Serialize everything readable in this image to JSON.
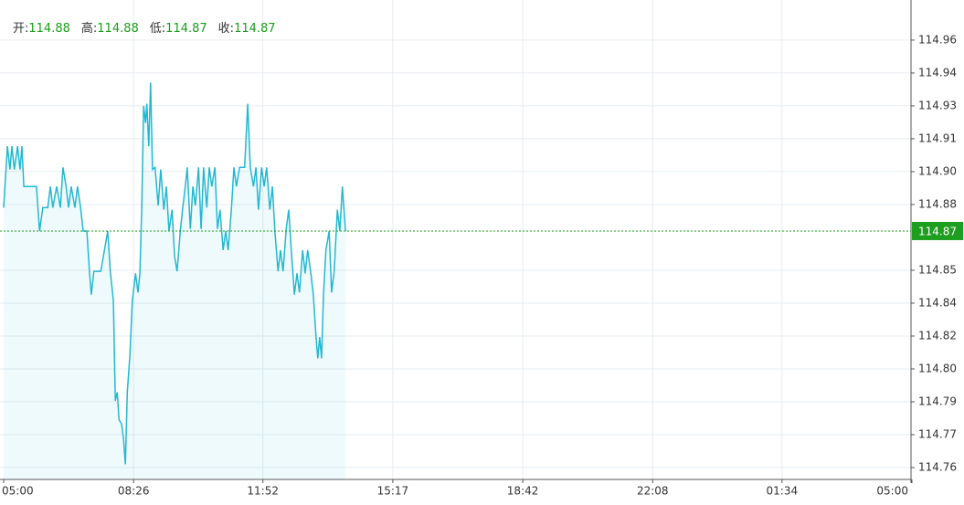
{
  "chart_data": {
    "type": "line",
    "ohlc": [
      {
        "label": "开:",
        "value": 114.88
      },
      {
        "label": "高:",
        "value": 114.88
      },
      {
        "label": "低:",
        "value": 114.87
      },
      {
        "label": "收:",
        "value": 114.87
      }
    ],
    "current_price": 114.87,
    "current_color": "#1e9e1e",
    "x": [
      0,
      6,
      10,
      13,
      17,
      22,
      26,
      29,
      32,
      38,
      45,
      52,
      57,
      62,
      70,
      74,
      78,
      84,
      90,
      94,
      99,
      103,
      107,
      113,
      117,
      122,
      126,
      132,
      136,
      139,
      143,
      154,
      161,
      165,
      169,
      174,
      177,
      180,
      183,
      187,
      190,
      193,
      196,
      200,
      204,
      209,
      213,
      216,
      219,
      222,
      225,
      227,
      230,
      233,
      236,
      240,
      245,
      249,
      254,
      258,
      262,
      267,
      271,
      275,
      280,
      284,
      288,
      291,
      296,
      300,
      304,
      309,
      313,
      317,
      322,
      326,
      330,
      335,
      339,
      343,
      348,
      352,
      356,
      361,
      365,
      369,
      374,
      382,
      387,
      391,
      396,
      400,
      404,
      409,
      413,
      417,
      422,
      426,
      430,
      435,
      439,
      443,
      448,
      452,
      456,
      461,
      465,
      469,
      474,
      478,
      482,
      487,
      491,
      495,
      498,
      501,
      504,
      507,
      511,
      516,
      520,
      524,
      529,
      533,
      537,
      542
    ],
    "series": [
      {
        "color": "#22b8d2",
        "values": [
          114.881,
          114.91,
          114.899,
          114.91,
          114.899,
          114.91,
          114.899,
          114.91,
          114.891,
          114.891,
          114.891,
          114.891,
          114.87,
          114.881,
          114.881,
          114.891,
          114.881,
          114.891,
          114.881,
          114.9,
          114.891,
          114.881,
          114.891,
          114.881,
          114.891,
          114.881,
          114.87,
          114.87,
          114.851,
          114.84,
          114.851,
          114.851,
          114.863,
          114.87,
          114.851,
          114.837,
          114.79,
          114.794,
          114.781,
          114.779,
          114.772,
          114.76,
          114.794,
          114.811,
          114.837,
          114.85,
          114.841,
          114.85,
          114.882,
          114.929,
          114.921,
          114.93,
          114.91,
          114.94,
          114.899,
          114.9,
          114.882,
          114.899,
          114.88,
          114.891,
          114.87,
          114.88,
          114.858,
          114.851,
          114.87,
          114.881,
          114.891,
          114.9,
          114.871,
          114.891,
          114.882,
          114.9,
          114.871,
          114.9,
          114.881,
          114.9,
          114.891,
          114.9,
          114.871,
          114.88,
          114.861,
          114.87,
          114.861,
          114.88,
          114.9,
          114.891,
          114.9,
          114.9,
          114.93,
          114.9,
          114.891,
          114.9,
          114.88,
          114.9,
          114.891,
          114.9,
          114.88,
          114.891,
          114.87,
          114.851,
          114.861,
          114.851,
          114.871,
          114.88,
          114.861,
          114.84,
          114.85,
          114.841,
          114.861,
          114.85,
          114.861,
          114.85,
          114.84,
          114.821,
          114.81,
          114.82,
          114.81,
          114.84,
          114.861,
          114.87,
          114.841,
          114.851,
          114.88,
          114.87,
          114.891,
          114.87
        ]
      }
    ],
    "xlim": [
      0,
      1440
    ],
    "xticks": [
      {
        "value": 0,
        "label": "05:00"
      },
      {
        "value": 206,
        "label": "08:26"
      },
      {
        "value": 411,
        "label": "11:52"
      },
      {
        "value": 617,
        "label": "15:17"
      },
      {
        "value": 823,
        "label": "18:42"
      },
      {
        "value": 1029,
        "label": "22:08"
      },
      {
        "value": 1234,
        "label": "01:34"
      },
      {
        "value": 1440,
        "label": "05:00"
      }
    ],
    "ylim": [
      114.7529,
      114.9789
    ],
    "yticks": [
      114.96,
      {
        "value": 114.9445,
        "label": "114.94"
      },
      {
        "value": 114.929,
        "label": "114.93"
      },
      {
        "value": 114.9135,
        "label": "114.91"
      },
      {
        "value": 114.898,
        "label": "114.90"
      },
      {
        "value": 114.8825,
        "label": "114.88"
      },
      {
        "value": 114.8515,
        "label": "114.85"
      },
      {
        "value": 114.836,
        "label": "114.84"
      },
      {
        "value": 114.8205,
        "label": "114.82"
      },
      {
        "value": 114.805,
        "label": "114.80"
      },
      {
        "value": 114.7895,
        "label": "114.79"
      },
      {
        "value": 114.774,
        "label": "114.77"
      },
      {
        "value": 114.7585,
        "label": "114.76"
      }
    ],
    "grid": true
  }
}
